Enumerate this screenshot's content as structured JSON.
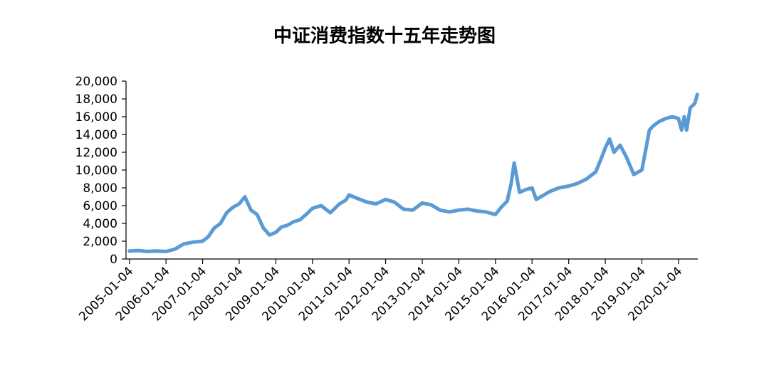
{
  "chart_data": {
    "type": "line",
    "title": "中证消费指数十五年走势图",
    "xlabel": "",
    "ylabel": "",
    "ylim": [
      0,
      20000
    ],
    "yticks": [
      0,
      2000,
      4000,
      6000,
      8000,
      10000,
      12000,
      14000,
      16000,
      18000,
      20000
    ],
    "ytick_labels": [
      "0",
      "2,000",
      "4,000",
      "6,000",
      "8,000",
      "10,000",
      "12,000",
      "14,000",
      "16,000",
      "18,000",
      "20,000"
    ],
    "xlim": [
      "2004-12-01",
      "2020-07-15"
    ],
    "xtick_labels": [
      "2005-01-04",
      "2006-01-04",
      "2007-01-04",
      "2008-01-04",
      "2009-01-04",
      "2010-01-04",
      "2011-01-04",
      "2012-01-04",
      "2013-01-04",
      "2014-01-04",
      "2015-01-04",
      "2016-01-04",
      "2017-01-04",
      "2018-01-04",
      "2019-01-04",
      "2020-01-04"
    ],
    "grid": false,
    "series_color": "#5b9bd5",
    "series": [
      {
        "x": [
          "2005-01-04",
          "2005-04-01",
          "2005-07-01",
          "2005-10-01",
          "2006-01-04",
          "2006-04-01",
          "2006-07-01",
          "2006-10-01",
          "2007-01-04",
          "2007-03-01",
          "2007-05-01",
          "2007-07-01",
          "2007-09-01",
          "2007-11-01",
          "2008-01-04",
          "2008-03-01",
          "2008-05-01",
          "2008-07-01",
          "2008-09-01",
          "2008-11-01",
          "2009-01-04",
          "2009-03-01",
          "2009-05-01",
          "2009-07-01",
          "2009-09-01",
          "2009-11-01",
          "2010-01-04",
          "2010-04-01",
          "2010-07-01",
          "2010-10-01",
          "2010-12-01",
          "2011-01-04",
          "2011-04-01",
          "2011-07-01",
          "2011-10-01",
          "2012-01-04",
          "2012-04-01",
          "2012-07-01",
          "2012-10-01",
          "2013-01-04",
          "2013-04-01",
          "2013-07-01",
          "2013-10-01",
          "2014-01-04",
          "2014-04-01",
          "2014-07-01",
          "2014-10-01",
          "2015-01-04",
          "2015-03-01",
          "2015-05-01",
          "2015-06-10",
          "2015-07-10",
          "2015-09-01",
          "2015-11-01",
          "2016-01-04",
          "2016-02-15",
          "2016-04-01",
          "2016-07-01",
          "2016-10-01",
          "2017-01-04",
          "2017-04-01",
          "2017-07-01",
          "2017-10-01",
          "2017-12-01",
          "2018-01-04",
          "2018-02-15",
          "2018-04-01",
          "2018-06-01",
          "2018-08-01",
          "2018-10-15",
          "2018-12-01",
          "2019-01-04",
          "2019-02-15",
          "2019-03-20",
          "2019-05-01",
          "2019-07-01",
          "2019-09-01",
          "2019-11-01",
          "2020-01-04",
          "2020-02-05",
          "2020-03-01",
          "2020-03-25",
          "2020-05-01",
          "2020-06-15",
          "2020-07-10"
        ],
        "values": [
          900,
          950,
          850,
          900,
          850,
          1100,
          1700,
          1900,
          2000,
          2500,
          3500,
          4000,
          5200,
          5800,
          6200,
          7000,
          5500,
          5000,
          3500,
          2700,
          3000,
          3600,
          3800,
          4200,
          4400,
          5000,
          5700,
          6000,
          5200,
          6200,
          6600,
          7200,
          6800,
          6400,
          6200,
          6700,
          6400,
          5600,
          5500,
          6300,
          6100,
          5500,
          5300,
          5500,
          5600,
          5400,
          5300,
          5000,
          5800,
          6500,
          8500,
          10800,
          7500,
          7800,
          8000,
          6700,
          7000,
          7600,
          8000,
          8200,
          8500,
          9000,
          9800,
          11500,
          12500,
          13500,
          12000,
          12800,
          11500,
          9500,
          9800,
          10000,
          12500,
          14500,
          15000,
          15500,
          15800,
          16000,
          15800,
          14500,
          16000,
          14500,
          17000,
          17500,
          18500
        ]
      }
    ]
  }
}
